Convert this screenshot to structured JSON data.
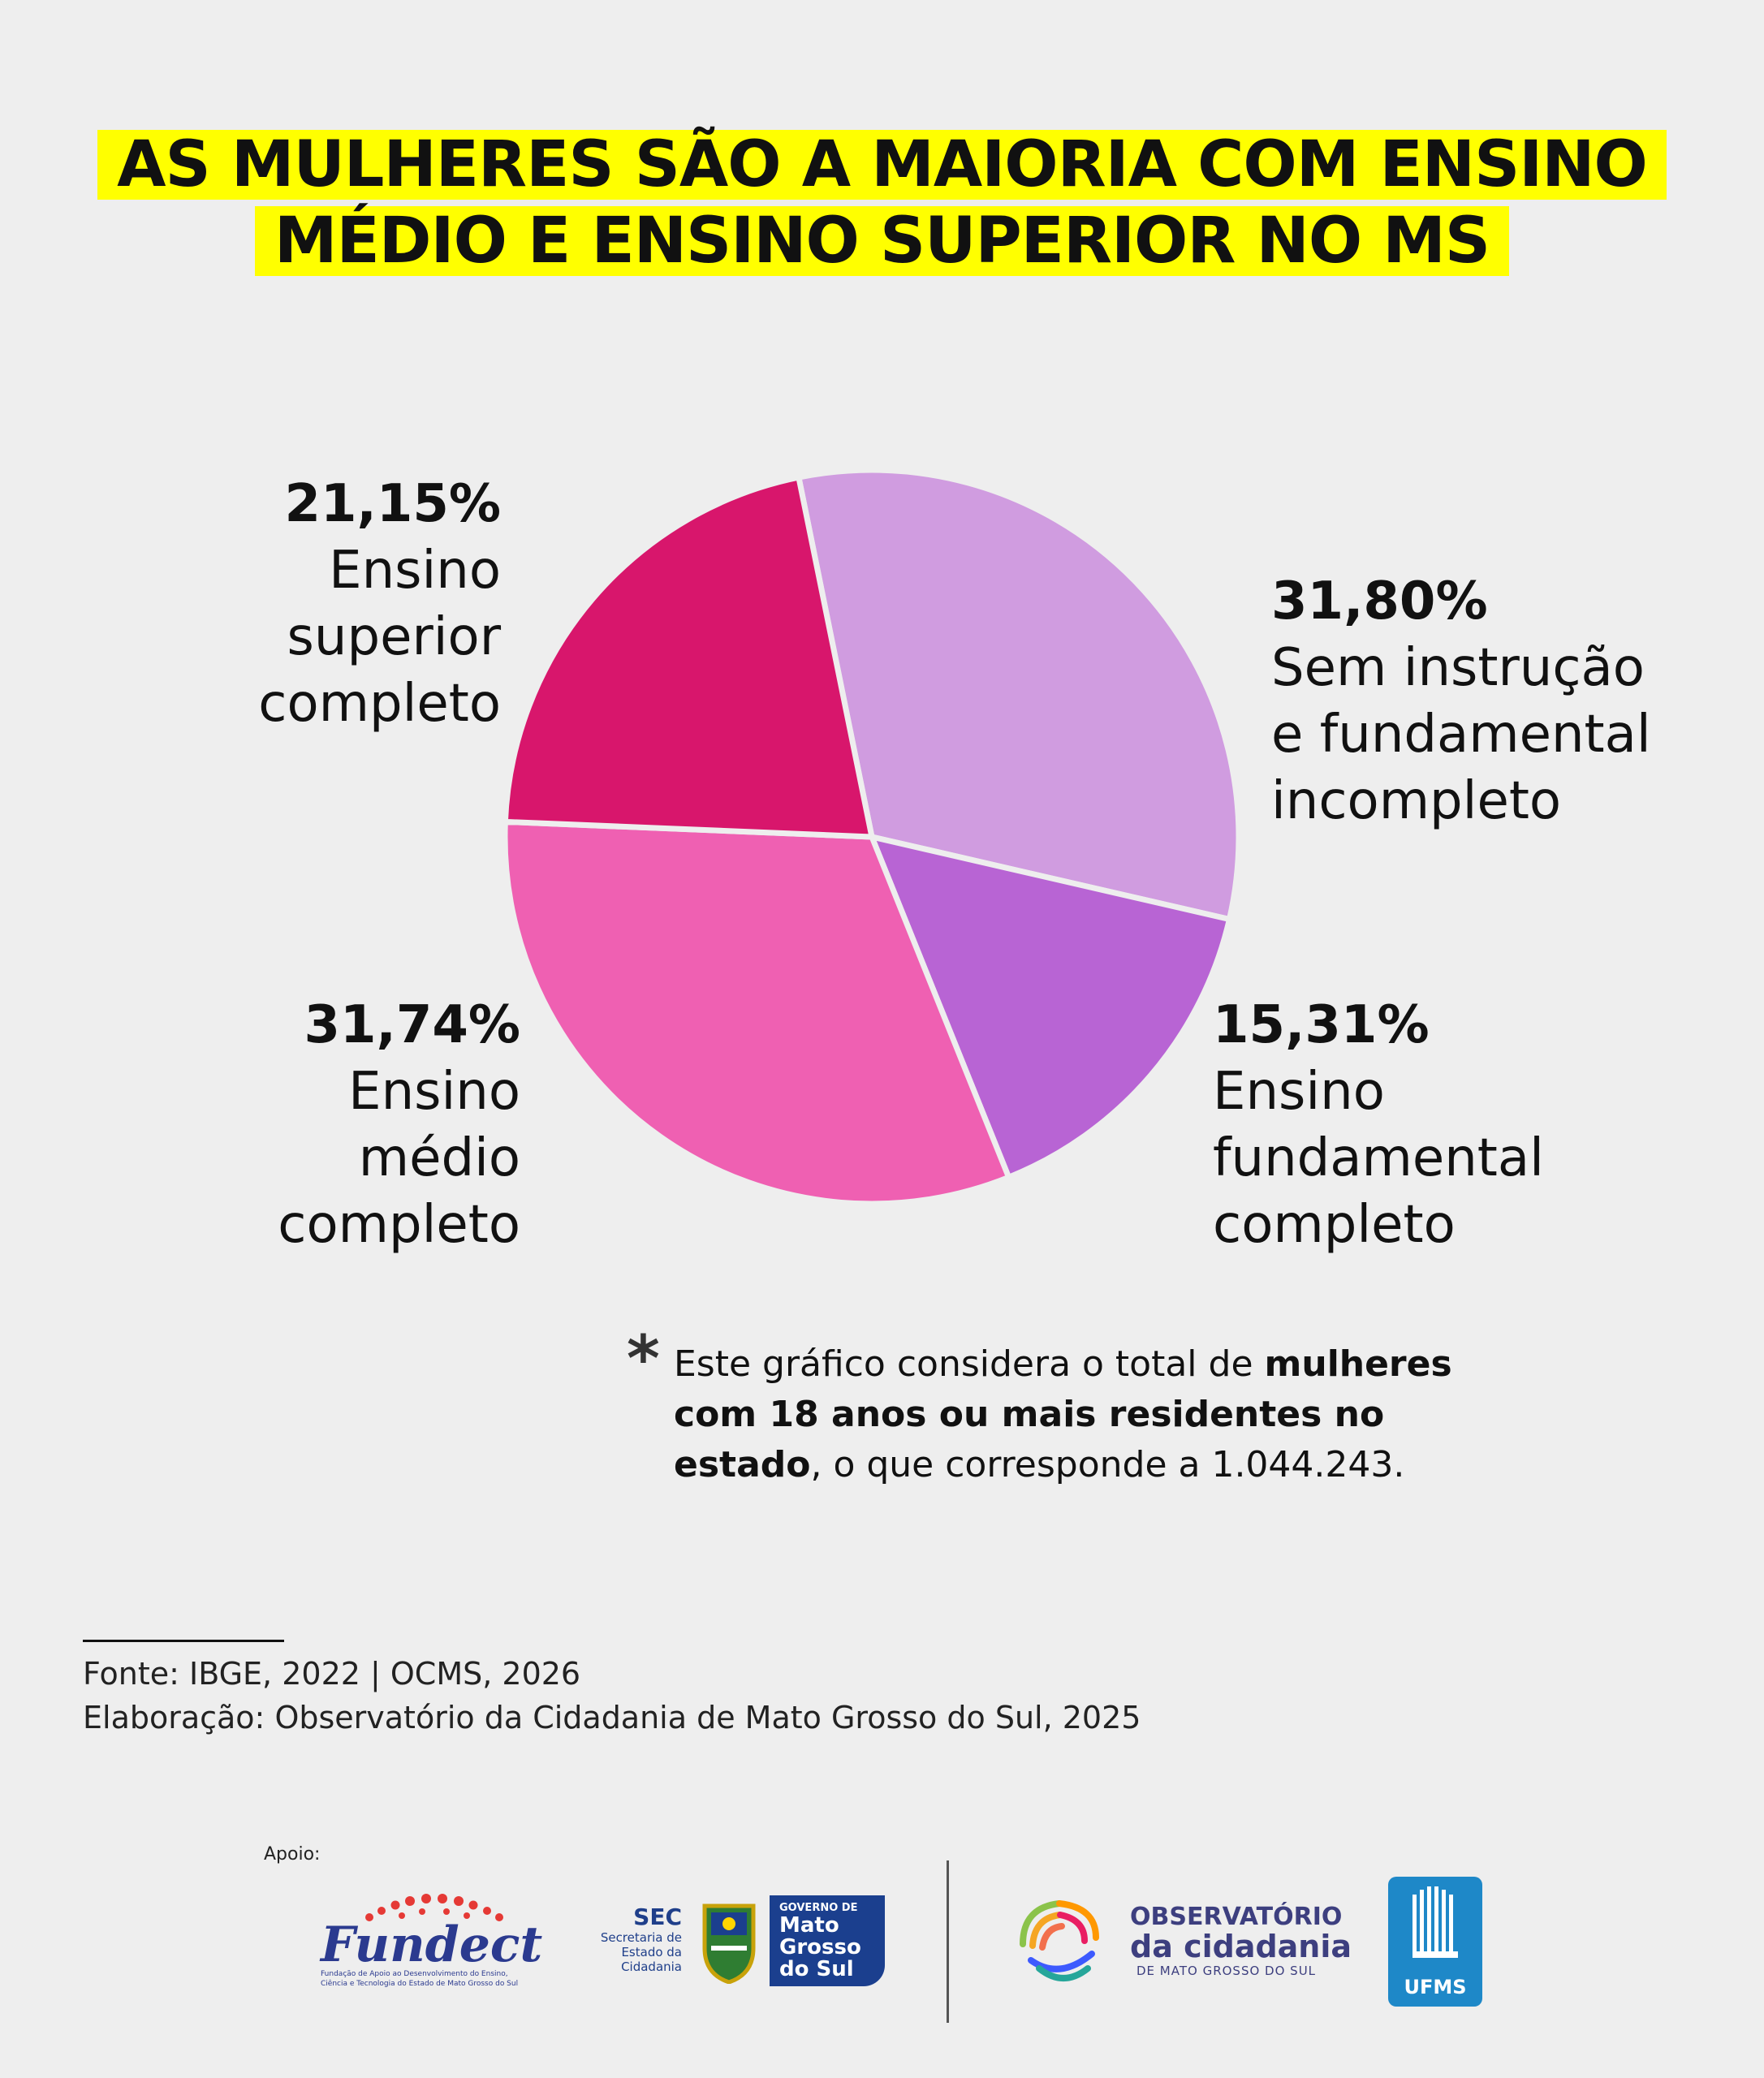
{
  "title": {
    "line1": "AS MULHERES SÃO A MAIORIA COM ENSINO",
    "line2": "MÉDIO E ENSINO SUPERIOR NO MS"
  },
  "chart_data": {
    "type": "pie",
    "title": "AS MULHERES SÃO A MAIORIA COM ENSINO MÉDIO E ENSINO SUPERIOR NO MS",
    "slices": [
      {
        "label": "Sem instrução e fundamental incompleto",
        "value": 31.8,
        "display": "31,80%",
        "color": "#d09ce0",
        "text": "Sem instrução\ne fundamental\nincompleto"
      },
      {
        "label": "Ensino fundamental completo",
        "value": 15.31,
        "display": "15,31%",
        "color": "#b864d4",
        "text": "Ensino\nfundamental\ncompleto"
      },
      {
        "label": "Ensino médio completo",
        "value": 31.74,
        "display": "31,74%",
        "color": "#ef60b2",
        "text": "Ensino\nmédio\ncompleto"
      },
      {
        "label": "Ensino superior completo",
        "value": 21.15,
        "display": "21,15%",
        "color": "#d8166c",
        "text": "Ensino\nsuperior\ncompleto"
      }
    ]
  },
  "note": {
    "star": "*",
    "part1": "Este gráfico considera o total de ",
    "bold": "mulheres com 18 anos ou mais residentes no estado",
    "part2": ", o que corresponde a 1.044.243."
  },
  "source": {
    "line1": "Fonte: IBGE, 2022 | OCMS, 2026",
    "line2": "Elaboração: Observatório da Cidadania de Mato Grosso do Sul, 2025"
  },
  "footer": {
    "apoio": "Apoio:",
    "fundect_name": "Fundect",
    "fundect_sub": "Fundação de Apoio ao Desenvolvimento do Ensino, Ciência e Tecnologia do Estado de Mato Grosso do Sul",
    "sec_big": "SEC",
    "sec_small": "Secretaria de Estado da Cidadania",
    "gov_small": "GOVERNO DE",
    "gov_big": "Mato Grosso do Sul",
    "ocms_line1": "OBSERVATÓRIO",
    "ocms_line2": "da cidadania",
    "ocms_line3": "DE MATO GROSSO DO SUL",
    "ufms": "UFMS"
  }
}
